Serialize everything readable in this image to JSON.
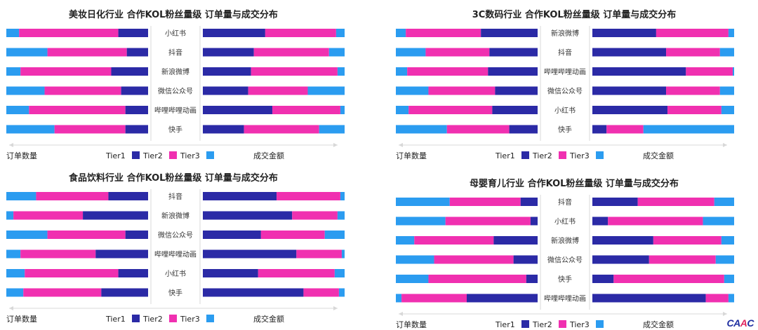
{
  "colors": {
    "tier1": "#2b2aa6",
    "tier2": "#f030b0",
    "tier3": "#2b9cf0",
    "axis": "#d8d8d8"
  },
  "footer": {
    "left_label": "订单数量",
    "right_label": "成交金额",
    "legend": [
      "Tier1",
      "Tier2",
      "Tier3"
    ]
  },
  "logo_text": "CAAC",
  "chart_data": [
    {
      "type": "bar",
      "title": "美妆日化行业 合作KOL粉丝量级 订单量与成交分布",
      "categories": [
        "小红书",
        "抖音",
        "新浪微博",
        "微信公众号",
        "哔哩哔哩动画",
        "快手"
      ],
      "series_names": [
        "Tier1",
        "Tier2",
        "Tier3"
      ],
      "left": {
        "label": "订单数量",
        "Tier1": [
          0.21,
          0.15,
          0.26,
          0.19,
          0.16,
          0.16
        ],
        "Tier2": [
          0.7,
          0.56,
          0.64,
          0.54,
          0.68,
          0.5
        ],
        "Tier3": [
          0.09,
          0.29,
          0.1,
          0.27,
          0.16,
          0.34
        ]
      },
      "right": {
        "label": "成交金额",
        "Tier1": [
          0.44,
          0.36,
          0.34,
          0.32,
          0.49,
          0.29
        ],
        "Tier2": [
          0.5,
          0.53,
          0.61,
          0.42,
          0.48,
          0.53
        ],
        "Tier3": [
          0.06,
          0.11,
          0.05,
          0.26,
          0.03,
          0.18
        ]
      }
    },
    {
      "type": "bar",
      "title": "3C数码行业 合作KOL粉丝量级 订单量与成交分布",
      "categories": [
        "新浪微博",
        "抖音",
        "哔哩哔哩动画",
        "微信公众号",
        "小红书",
        "快手"
      ],
      "series_names": [
        "Tier1",
        "Tier2",
        "Tier3"
      ],
      "left": {
        "label": "订单数量",
        "Tier1": [
          0.4,
          0.34,
          0.35,
          0.3,
          0.32,
          0.2
        ],
        "Tier2": [
          0.53,
          0.45,
          0.57,
          0.47,
          0.59,
          0.44
        ],
        "Tier3": [
          0.07,
          0.21,
          0.08,
          0.23,
          0.09,
          0.36
        ]
      },
      "right": {
        "label": "成交金额",
        "Tier1": [
          0.45,
          0.52,
          0.66,
          0.52,
          0.53,
          0.1
        ],
        "Tier2": [
          0.51,
          0.38,
          0.33,
          0.38,
          0.38,
          0.26
        ],
        "Tier3": [
          0.04,
          0.1,
          0.01,
          0.1,
          0.09,
          0.64
        ]
      }
    },
    {
      "type": "bar",
      "title": "食品饮料行业 合作KOL粉丝量级 订单量与成交分布",
      "categories": [
        "抖音",
        "新浪微博",
        "微信公众号",
        "哔哩哔哩动画",
        "小红书",
        "快手"
      ],
      "series_names": [
        "Tier1",
        "Tier2",
        "Tier3"
      ],
      "left": {
        "label": "订单数量",
        "Tier1": [
          0.28,
          0.46,
          0.16,
          0.37,
          0.21,
          0.33
        ],
        "Tier2": [
          0.51,
          0.49,
          0.55,
          0.53,
          0.66,
          0.55
        ],
        "Tier3": [
          0.21,
          0.05,
          0.29,
          0.1,
          0.13,
          0.12
        ]
      },
      "right": {
        "label": "成交金额",
        "Tier1": [
          0.52,
          0.63,
          0.41,
          0.66,
          0.39,
          0.71
        ],
        "Tier2": [
          0.45,
          0.32,
          0.45,
          0.32,
          0.54,
          0.25
        ],
        "Tier3": [
          0.03,
          0.05,
          0.14,
          0.02,
          0.07,
          0.04
        ]
      }
    },
    {
      "type": "bar",
      "title": "母婴育儿行业 合作KOL粉丝量级 订单量与成交分布",
      "categories": [
        "抖音",
        "小红书",
        "新浪微博",
        "微信公众号",
        "快手",
        "哔哩哔哩动画"
      ],
      "series_names": [
        "Tier1",
        "Tier2",
        "Tier3"
      ],
      "left": {
        "label": "订单数量",
        "Tier1": [
          0.12,
          0.05,
          0.31,
          0.17,
          0.08,
          0.5
        ],
        "Tier2": [
          0.5,
          0.6,
          0.56,
          0.56,
          0.69,
          0.46
        ],
        "Tier3": [
          0.38,
          0.35,
          0.13,
          0.27,
          0.23,
          0.04
        ]
      },
      "right": {
        "label": "成交金额",
        "Tier1": [
          0.32,
          0.11,
          0.43,
          0.4,
          0.15,
          0.8
        ],
        "Tier2": [
          0.54,
          0.67,
          0.48,
          0.47,
          0.78,
          0.16
        ],
        "Tier3": [
          0.14,
          0.22,
          0.09,
          0.13,
          0.07,
          0.04
        ]
      }
    }
  ]
}
